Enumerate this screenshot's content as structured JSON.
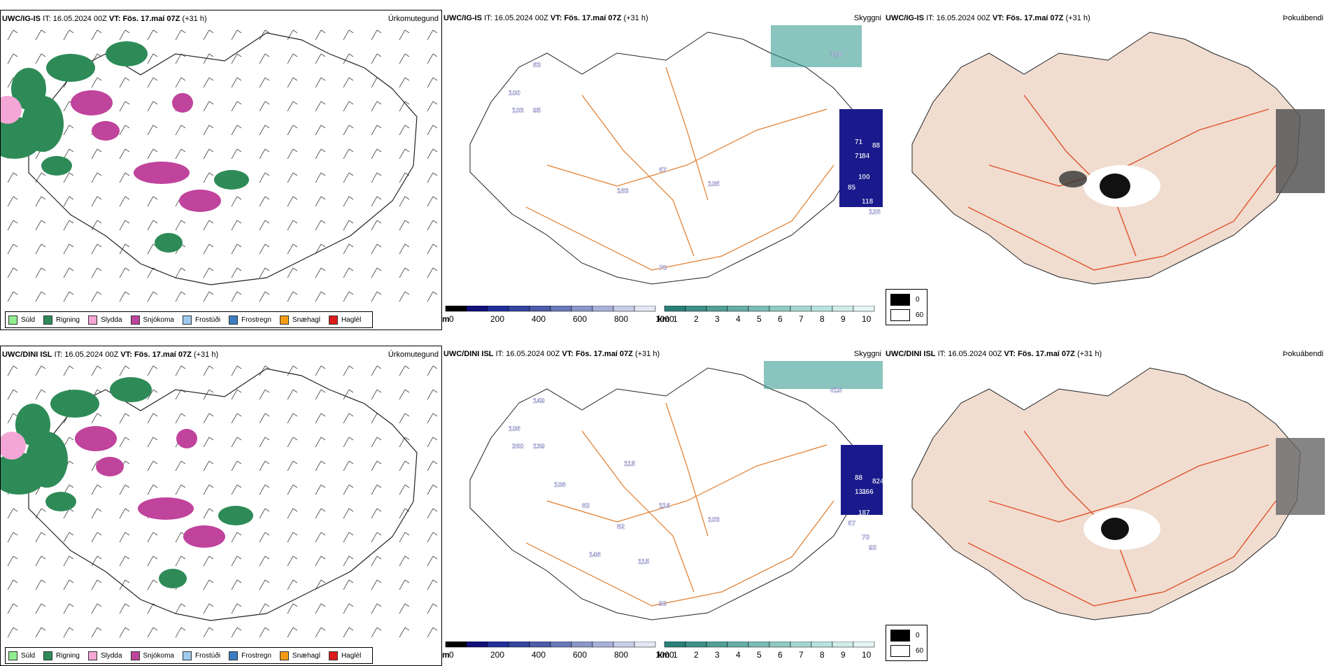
{
  "rows": [
    {
      "model": "UWC/IG-IS",
      "it_label": "IT:",
      "it_value": "16.05.2024 00Z",
      "vt_label": "VT:",
      "vt_value": "Fös. 17.maí 07Z",
      "lead": "(+31 h)",
      "titles": [
        "Úrkomutegund",
        "Skyggni",
        "Þokuábendi"
      ],
      "skyggni_labels": [
        "83",
        "100",
        "103",
        "95",
        "67",
        "183",
        "105",
        "170",
        "71",
        "88",
        "84",
        "71",
        "100",
        "85",
        "118",
        "128",
        "78"
      ],
      "scale_left": {
        "unit": "m",
        "ticks": [
          "0",
          "200",
          "400",
          "600",
          "800",
          "1000"
        ]
      },
      "scale_right": {
        "unit": "km",
        "ticks": [
          "1",
          "2",
          "3",
          "4",
          "5",
          "6",
          "7",
          "8",
          "9",
          "10"
        ]
      },
      "bw_ticks": [
        "0",
        "60"
      ]
    },
    {
      "model": "UWC/DINI ISL",
      "it_label": "IT:",
      "it_value": "16.05.2024 00Z",
      "vt_label": "VT:",
      "vt_value": "Fös. 17.maí 07Z",
      "lead": "(+31 h)",
      "titles": [
        "Úrkomutegund",
        "Skyggni",
        "Þokuábendi"
      ],
      "skyggni_labels": [
        "149",
        "108",
        "260",
        "139",
        "116",
        "82",
        "103",
        "615",
        "88",
        "824",
        "266",
        "131",
        "187",
        "67",
        "70",
        "92",
        "90",
        "115",
        "148",
        "115",
        "108",
        "82"
      ],
      "scale_left": {
        "unit": "m",
        "ticks": [
          "0",
          "200",
          "400",
          "600",
          "800",
          "1000"
        ]
      },
      "scale_right": {
        "unit": "km",
        "ticks": [
          "1",
          "2",
          "3",
          "4",
          "5",
          "6",
          "7",
          "8",
          "9",
          "10"
        ]
      },
      "bw_ticks": [
        "0",
        "60"
      ]
    }
  ],
  "legend": [
    {
      "label": "Súld",
      "color": "#90ee90"
    },
    {
      "label": "Rigning",
      "color": "#2e8b57"
    },
    {
      "label": "Slydda",
      "color": "#f4a6d7"
    },
    {
      "label": "Snjókoma",
      "color": "#c0439c"
    },
    {
      "label": "Frostúði",
      "color": "#9ecbf0"
    },
    {
      "label": "Frostregn",
      "color": "#3a7fc1"
    },
    {
      "label": "Snæhagl",
      "color": "#f39c12"
    },
    {
      "label": "Haglél",
      "color": "#e01b1b"
    }
  ],
  "colors": {
    "rain": "#2e8b57",
    "snow": "#c0439c",
    "sleet": "#f4a6d7",
    "drizzle": "#90ee90",
    "fog_dark": "#1a1a8c",
    "fog_teal": "#3a9c92",
    "road": "#e07b2a",
    "land": "#f0ddd0",
    "road_red": "#e0502a"
  }
}
